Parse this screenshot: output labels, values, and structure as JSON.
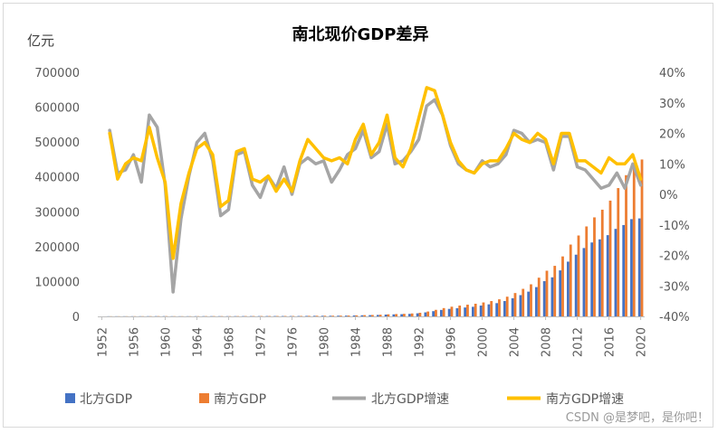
{
  "watermark": "CSDN @是梦吧，是你吧！",
  "colors": {
    "north_gdp": "#4472C4",
    "south_gdp": "#ED7D31",
    "north_growth": "#A5A5A5",
    "south_growth": "#FFC000",
    "axis_text": "#595959"
  },
  "chart_data": {
    "type": "bar",
    "title": "南北现价GDP差异",
    "ylabel": "亿元",
    "ylim": [
      0,
      700000
    ],
    "y_ticks": [
      "0",
      "100000",
      "200000",
      "300000",
      "400000",
      "500000",
      "600000",
      "700000"
    ],
    "y2lim": [
      -40,
      40
    ],
    "y2_ticks": [
      "-40%",
      "-30%",
      "-20%",
      "-10%",
      "0%",
      "10%",
      "20%",
      "30%",
      "40%"
    ],
    "x_ticks": [
      "1952",
      "1956",
      "1960",
      "1964",
      "1968",
      "1972",
      "1976",
      "1980",
      "1984",
      "1988",
      "1992",
      "1996",
      "2000",
      "2004",
      "2008",
      "2012",
      "2016",
      "2020"
    ],
    "x": [
      1953,
      1954,
      1955,
      1956,
      1957,
      1958,
      1959,
      1960,
      1961,
      1962,
      1963,
      1964,
      1965,
      1966,
      1967,
      1968,
      1969,
      1970,
      1971,
      1972,
      1973,
      1974,
      1975,
      1976,
      1977,
      1978,
      1979,
      1980,
      1981,
      1982,
      1983,
      1984,
      1985,
      1986,
      1987,
      1988,
      1989,
      1990,
      1991,
      1992,
      1993,
      1994,
      1995,
      1996,
      1997,
      1998,
      1999,
      2000,
      2001,
      2002,
      2003,
      2004,
      2005,
      2006,
      2007,
      2008,
      2009,
      2010,
      2011,
      2012,
      2013,
      2014,
      2015,
      2016,
      2017,
      2018,
      2019,
      2020
    ],
    "series": [
      {
        "name": "北方GDP",
        "kind": "bar",
        "axis": "left",
        "values": [
          412,
          442,
          468,
          510,
          540,
          648,
          720,
          730,
          540,
          502,
          532,
          622,
          700,
          748,
          700,
          680,
          760,
          860,
          920,
          940,
          1000,
          1020,
          1060,
          1040,
          1150,
          1400,
          1600,
          1700,
          1800,
          1960,
          2200,
          2600,
          3200,
          3600,
          4200,
          5200,
          5800,
          6300,
          7200,
          8800,
          11500,
          15000,
          18500,
          21500,
          23500,
          25500,
          27500,
          31000,
          34500,
          38000,
          44000,
          52000,
          61000,
          71000,
          84000,
          101000,
          112000,
          132000,
          157000,
          177000,
          196000,
          212000,
          221000,
          233000,
          251000,
          262000,
          279000,
          281000
        ]
      },
      {
        "name": "南方GDP",
        "kind": "bar",
        "axis": "left",
        "values": [
          412,
          442,
          469,
          520,
          548,
          660,
          730,
          740,
          560,
          512,
          542,
          632,
          720,
          770,
          720,
          700,
          780,
          885,
          950,
          975,
          1040,
          1070,
          1110,
          1090,
          1210,
          1490,
          1700,
          1820,
          1950,
          2130,
          2400,
          2900,
          3600,
          4050,
          4800,
          6000,
          6700,
          7300,
          8400,
          10400,
          14000,
          18800,
          23800,
          27800,
          31000,
          33600,
          36300,
          40000,
          44000,
          49000,
          56500,
          67000,
          79000,
          92000,
          111000,
          131000,
          145000,
          172000,
          206000,
          232000,
          258000,
          284000,
          306000,
          332000,
          368000,
          405000,
          430000,
          450000
        ]
      },
      {
        "name": "北方GDP增速",
        "kind": "line",
        "axis": "right",
        "values": [
          21,
          7,
          8,
          13,
          4,
          26,
          22,
          3,
          -32,
          -8,
          6,
          17,
          20,
          11,
          -7,
          -5,
          13,
          14,
          3,
          -1,
          6,
          2,
          9,
          0,
          10,
          12,
          10,
          11,
          4,
          8,
          13,
          15,
          21,
          12,
          14,
          23,
          10,
          11,
          14,
          18,
          29,
          31,
          26,
          16,
          10,
          8,
          7,
          11,
          9,
          10,
          13,
          21,
          20,
          17,
          18,
          17,
          8,
          19,
          19,
          9,
          8,
          5,
          2,
          3,
          7,
          2,
          10,
          3
        ]
      },
      {
        "name": "南方GDP增速",
        "kind": "line",
        "axis": "right",
        "values": [
          20,
          5,
          10,
          12,
          11,
          22,
          12,
          4,
          -21,
          -3,
          7,
          15,
          17,
          13,
          -4,
          -2,
          14,
          15,
          5,
          4,
          6,
          1,
          5,
          1,
          11,
          18,
          15,
          12,
          11,
          12,
          10,
          18,
          23,
          13,
          17,
          26,
          12,
          9,
          15,
          25,
          35,
          34,
          26,
          17,
          11,
          8,
          7,
          10,
          11,
          11,
          15,
          20,
          18,
          17,
          20,
          18,
          10,
          20,
          20,
          11,
          11,
          9,
          7,
          12,
          10,
          10,
          13,
          5
        ]
      }
    ]
  }
}
